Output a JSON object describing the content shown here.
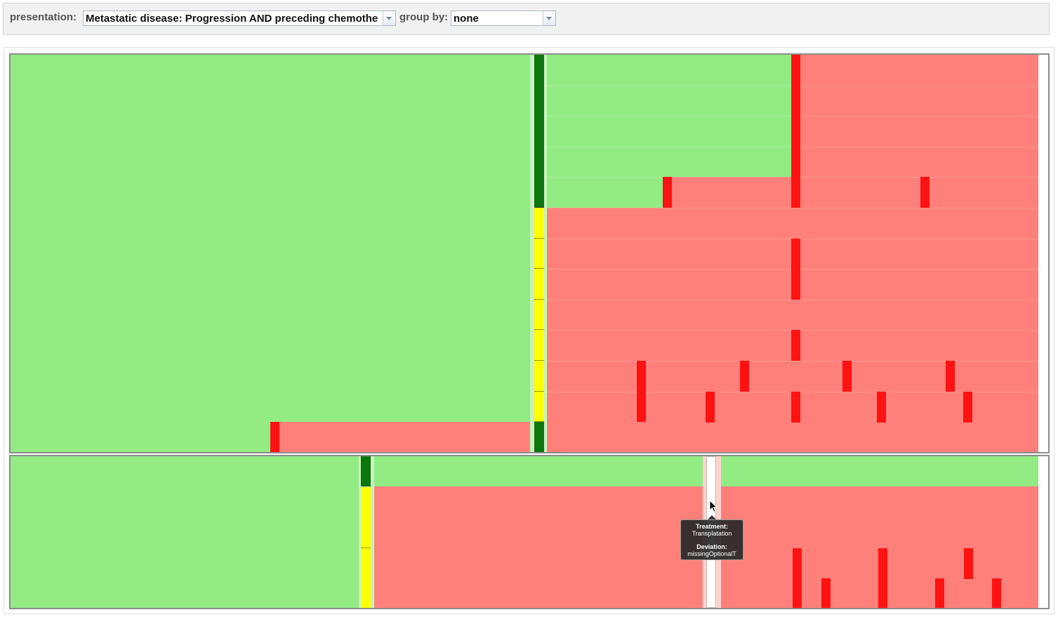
{
  "toolbar": {
    "presentation_label": "presentation:",
    "presentation_value": "Metastatic  disease: Progression AND preceding chemothe",
    "group_by_label": "group by:",
    "group_by_value": "none"
  },
  "colors": {
    "light_green": "#93eb84",
    "dark_green": "#0d760d",
    "light_red": "#ff807a",
    "red": "#ff1212",
    "yellow": "#ffff00",
    "white": "#ffffff"
  },
  "tooltip": {
    "treatment_label": "Treatment:",
    "treatment_value": "Transplatation",
    "deviation_label": "Deviation:",
    "deviation_value": "missingOptionalT"
  }
}
